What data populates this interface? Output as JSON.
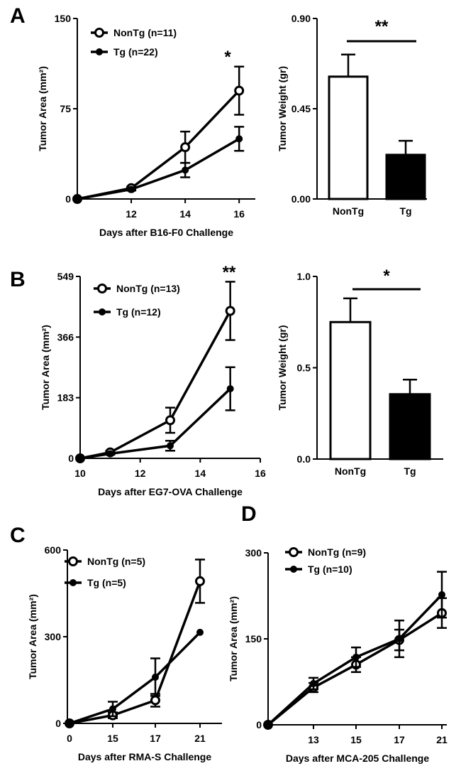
{
  "chart_data": [
    {
      "panel": "A",
      "type": "line",
      "ylabel": "Tumor Area (mm²)",
      "xlabel": "Days after B16-F0 Challenge",
      "ylim": [
        0,
        150
      ],
      "yticks": [
        0,
        75,
        150
      ],
      "xlim": [
        10,
        16.6
      ],
      "xticks": [
        12,
        14,
        16
      ],
      "series": [
        {
          "name": "NonTg (n=11)",
          "marker": "open",
          "x": [
            10,
            12,
            14,
            16
          ],
          "y": [
            0,
            9,
            43,
            90
          ],
          "err": [
            0,
            1,
            13,
            20
          ]
        },
        {
          "name": "Tg (n=22)",
          "marker": "filled",
          "x": [
            10,
            12,
            14,
            16
          ],
          "y": [
            0,
            8,
            24,
            50
          ],
          "err": [
            0,
            1,
            6,
            10
          ]
        }
      ],
      "annotations": [
        {
          "text": "*",
          "x": 16
        }
      ]
    },
    {
      "panel": "A",
      "type": "bar",
      "ylabel": "Tumor Weight (gr)",
      "categories": [
        "NonTg",
        "Tg"
      ],
      "values": [
        0.61,
        0.22
      ],
      "errors": [
        0.11,
        0.07
      ],
      "fills": [
        "#ffffff",
        "#000000"
      ],
      "ylim": [
        0,
        0.9
      ],
      "yticks": [
        "0.00",
        "0.45",
        "0.90"
      ],
      "significance": "**"
    },
    {
      "panel": "B",
      "type": "line",
      "ylabel": "Tumor Area (mm²)",
      "xlabel": "Days after EG7-OVA Challenge",
      "ylim": [
        0,
        549
      ],
      "yticks": [
        0,
        183,
        366,
        549
      ],
      "xlim": [
        10,
        16
      ],
      "xticks": [
        10,
        12,
        14,
        16
      ],
      "series": [
        {
          "name": "NonTg (n=13)",
          "marker": "open",
          "x": [
            10,
            11,
            13,
            15
          ],
          "y": [
            0,
            18,
            115,
            445
          ],
          "err": [
            0,
            4,
            38,
            88
          ]
        },
        {
          "name": "Tg (n=12)",
          "marker": "filled",
          "x": [
            10,
            11,
            13,
            15
          ],
          "y": [
            0,
            14,
            38,
            210
          ],
          "err": [
            0,
            3,
            15,
            65
          ]
        }
      ],
      "annotations": [
        {
          "text": "**",
          "x": 15
        }
      ]
    },
    {
      "panel": "B",
      "type": "bar",
      "ylabel": "Tumor Weight (gr)",
      "categories": [
        "NonTg",
        "Tg"
      ],
      "values": [
        0.75,
        0.355
      ],
      "errors": [
        0.13,
        0.08
      ],
      "fills": [
        "#ffffff",
        "#000000"
      ],
      "ylim": [
        0,
        1.0
      ],
      "yticks": [
        "0.0",
        "0.5",
        "1.0"
      ],
      "significance": "*"
    },
    {
      "panel": "C",
      "type": "line",
      "ylabel": "Tumor Area (mm²)",
      "xlabel": "Days after RMA-S Challenge",
      "ylim": [
        0,
        600
      ],
      "yticks": [
        0,
        300,
        600
      ],
      "xticks": [
        "0",
        "15",
        "17",
        "21"
      ],
      "series": [
        {
          "name": "NonTg (n=5)",
          "marker": "open",
          "x": [
            "0",
            "15",
            "17",
            "21"
          ],
          "y": [
            0,
            28,
            80,
            492
          ],
          "err": [
            0,
            10,
            22,
            75
          ]
        },
        {
          "name": "Tg (n=5)",
          "marker": "filled",
          "x": [
            "0",
            "15",
            "17",
            "21"
          ],
          "y": [
            0,
            50,
            160,
            315
          ],
          "err": [
            0,
            25,
            65,
            0
          ]
        }
      ]
    },
    {
      "panel": "D",
      "type": "line",
      "ylabel": "Tumor Area (mm²)",
      "xlabel": "Days after MCA-205 Challenge",
      "ylim": [
        0,
        300
      ],
      "yticks": [
        0,
        150,
        300
      ],
      "xticks": [
        "13",
        "15",
        "17",
        "21"
      ],
      "series": [
        {
          "name": "NonTg (n=9)",
          "marker": "open",
          "x": [
            "0",
            "13",
            "15",
            "17",
            "21"
          ],
          "y": [
            0,
            65,
            105,
            148,
            195
          ],
          "err": [
            0,
            8,
            13,
            18,
            26
          ]
        },
        {
          "name": "Tg (n=10)",
          "marker": "filled",
          "x": [
            "0",
            "13",
            "15",
            "17",
            "21"
          ],
          "y": [
            0,
            72,
            118,
            150,
            227
          ],
          "err": [
            0,
            10,
            17,
            32,
            40
          ]
        }
      ]
    }
  ]
}
